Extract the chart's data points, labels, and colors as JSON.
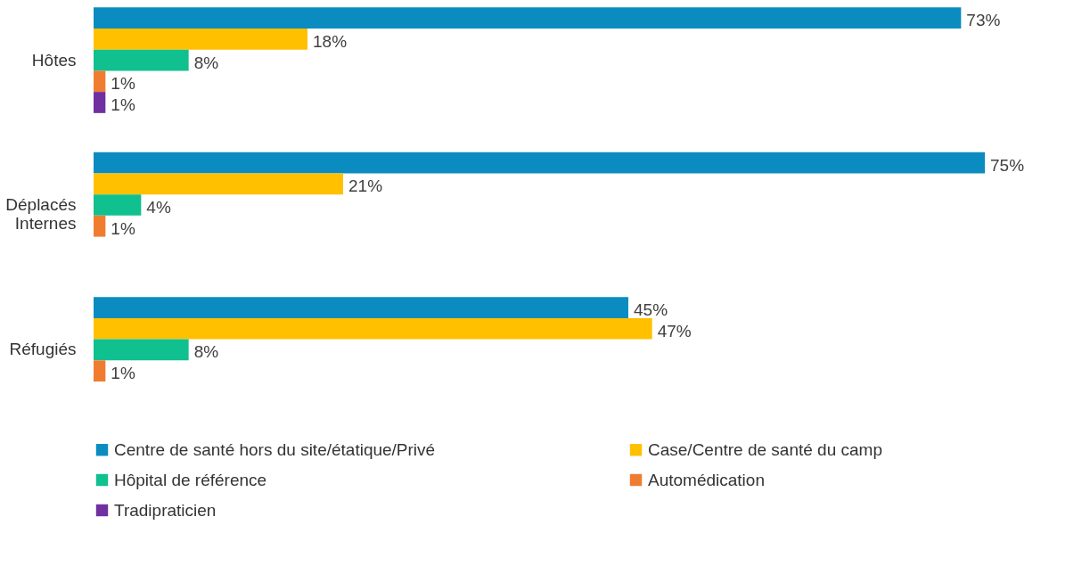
{
  "chart_data": {
    "type": "bar",
    "orientation": "horizontal",
    "categories": [
      "Hôtes",
      "Déplacés Internes",
      "Réfugiés"
    ],
    "series": [
      {
        "name": "Centre de santé hors du site/étatique/Privé",
        "color": "#0a8cc0",
        "values": [
          73,
          75,
          45
        ],
        "value_labels": [
          "73%",
          "75%",
          "45%"
        ]
      },
      {
        "name": "Case/Centre de santé du camp",
        "color": "#ffc000",
        "values": [
          18,
          21,
          47
        ],
        "value_labels": [
          "18%",
          "21%",
          "47%"
        ]
      },
      {
        "name": "Hôpital de référence",
        "color": "#10c08f",
        "values": [
          8,
          4,
          8
        ],
        "value_labels": [
          "8%",
          "4%",
          "8%"
        ]
      },
      {
        "name": "Automédication",
        "color": "#f07c30",
        "values": [
          1,
          1,
          1
        ],
        "value_labels": [
          "1%",
          "1%",
          "1%"
        ]
      },
      {
        "name": "Tradipraticien",
        "color": "#7030a0",
        "values": [
          1,
          null,
          null
        ],
        "value_labels": [
          "1%",
          null,
          null
        ]
      }
    ],
    "legend": "bottom"
  }
}
